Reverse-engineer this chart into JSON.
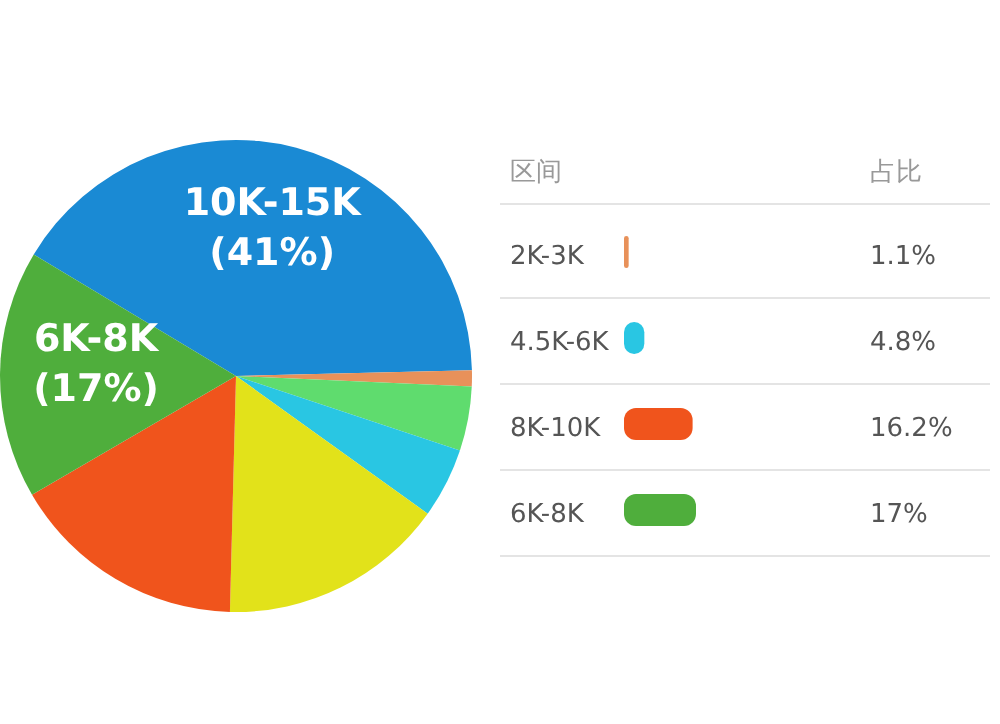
{
  "chart_data": {
    "type": "pie",
    "categories": [
      "10K-15K",
      "2K-3K",
      null,
      "4.5K-6K",
      null,
      "8K-10K",
      "6K-8K"
    ],
    "values": [
      41,
      1.1,
      4.4,
      4.8,
      15.5,
      16.2,
      17
    ],
    "colors": [
      "#1a8ad4",
      "#e8915a",
      "#5fdc6e",
      "#29c6e3",
      "#e2e21a",
      "#f0541c",
      "#4fae3c"
    ],
    "value_labels": [
      "(41%)",
      null,
      null,
      null,
      null,
      null,
      "(17%)"
    ],
    "annotations": [
      "区间",
      "占比",
      "1.1%",
      "4.8%",
      "16.2%",
      "17%"
    ],
    "legend": "right"
  }
}
